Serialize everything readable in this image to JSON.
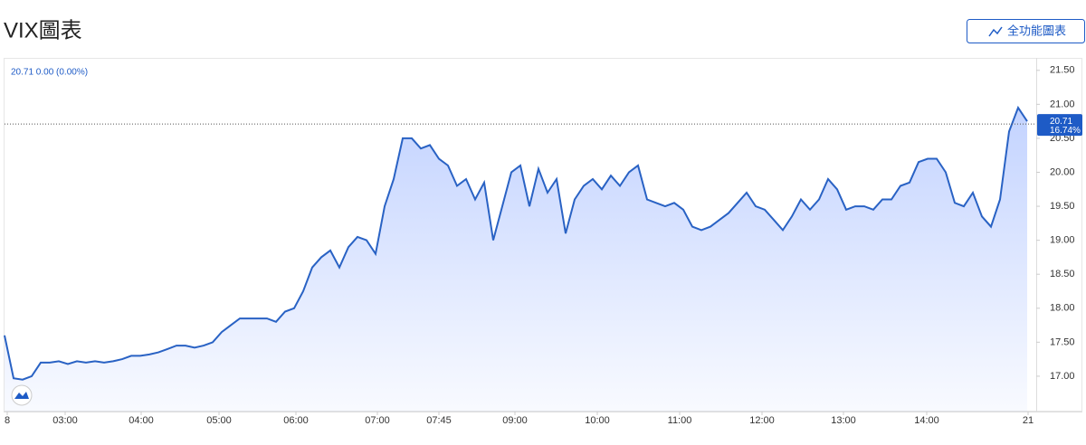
{
  "page_title": "VIX圖表",
  "button_label": "全功能圖表",
  "chart_data": {
    "type": "area",
    "legend_text": "20.71 0.00 (0.00%)",
    "last_value": 20.71,
    "last_change_label": "16.74%",
    "color": "#2962c4",
    "x": [
      0,
      1,
      2,
      3,
      4,
      5,
      6,
      7,
      8,
      9,
      10,
      11,
      12,
      13,
      14,
      15,
      16,
      17,
      18,
      19,
      20,
      21,
      22,
      23,
      24,
      25,
      26,
      27,
      28,
      29,
      30,
      31,
      32,
      33,
      34,
      35,
      36,
      37,
      38,
      39,
      40,
      41,
      42,
      43,
      44,
      45,
      46,
      47,
      48,
      49,
      50,
      51,
      52,
      53,
      54,
      55,
      56,
      57,
      58,
      59,
      60,
      61,
      62,
      63,
      64,
      65,
      66,
      67,
      68,
      69,
      70,
      71,
      72,
      73,
      74,
      75,
      76,
      77,
      78,
      79,
      80,
      81,
      82,
      83,
      84,
      85,
      86,
      87,
      88,
      89,
      90,
      91,
      92,
      93,
      94,
      95,
      96,
      97,
      98,
      99,
      100,
      101,
      102,
      103,
      104,
      105,
      106,
      107,
      108,
      109,
      110,
      111,
      112,
      113
    ],
    "values": [
      17.6,
      16.97,
      16.95,
      17.0,
      17.2,
      17.2,
      17.22,
      17.18,
      17.22,
      17.2,
      17.22,
      17.2,
      17.22,
      17.25,
      17.3,
      17.3,
      17.32,
      17.35,
      17.4,
      17.45,
      17.45,
      17.42,
      17.45,
      17.5,
      17.65,
      17.75,
      17.85,
      17.85,
      17.85,
      17.85,
      17.8,
      17.95,
      18.0,
      18.25,
      18.6,
      18.75,
      18.85,
      18.6,
      18.9,
      19.05,
      19.0,
      18.8,
      19.5,
      19.9,
      20.5,
      20.5,
      20.35,
      20.4,
      20.2,
      20.1,
      19.8,
      19.9,
      19.6,
      19.85,
      19.0,
      19.5,
      20.0,
      20.1,
      19.5,
      20.05,
      19.7,
      19.9,
      19.1,
      19.6,
      19.8,
      19.9,
      19.75,
      19.95,
      19.8,
      20.0,
      20.1,
      19.6,
      19.55,
      19.5,
      19.55,
      19.45,
      19.2,
      19.15,
      19.2,
      19.3,
      19.4,
      19.55,
      19.7,
      19.5,
      19.45,
      19.3,
      19.15,
      19.35,
      19.6,
      19.45,
      19.6,
      19.9,
      19.75,
      19.45,
      19.5,
      19.5,
      19.45,
      19.6,
      19.6,
      19.8,
      19.85,
      20.15,
      20.2,
      20.2,
      20.0,
      19.55,
      19.5,
      19.7,
      19.35,
      19.2,
      19.6,
      20.6,
      20.95,
      20.75
    ],
    "xlim": [
      0,
      114
    ],
    "xticks": [
      {
        "value": 0.3,
        "label": "8"
      },
      {
        "value": 6.7,
        "label": "03:00"
      },
      {
        "value": 15.1,
        "label": "04:00"
      },
      {
        "value": 23.7,
        "label": "05:00"
      },
      {
        "value": 32.2,
        "label": "06:00"
      },
      {
        "value": 41.2,
        "label": "07:00"
      },
      {
        "value": 48,
        "label": "07:45"
      },
      {
        "value": 56.4,
        "label": "09:00"
      },
      {
        "value": 65.5,
        "label": "10:00"
      },
      {
        "value": 74.6,
        "label": "11:00"
      },
      {
        "value": 83.7,
        "label": "12:00"
      },
      {
        "value": 92.7,
        "label": "13:00"
      },
      {
        "value": 101.9,
        "label": "14:00"
      },
      {
        "value": 113.1,
        "label": "21"
      }
    ],
    "ylim": [
      16.48,
      21.67
    ],
    "yticks": [
      {
        "value": 17,
        "label": "17.00"
      },
      {
        "value": 17.5,
        "label": "17.50"
      },
      {
        "value": 18,
        "label": "18.00"
      },
      {
        "value": 18.5,
        "label": "18.50"
      },
      {
        "value": 19,
        "label": "19.00"
      },
      {
        "value": 19.5,
        "label": "19.50"
      },
      {
        "value": 20,
        "label": "20.00"
      },
      {
        "value": 20.5,
        "label": "20.50"
      },
      {
        "value": 21,
        "label": "21.00"
      },
      {
        "value": 21.5,
        "label": "21.50"
      }
    ]
  }
}
